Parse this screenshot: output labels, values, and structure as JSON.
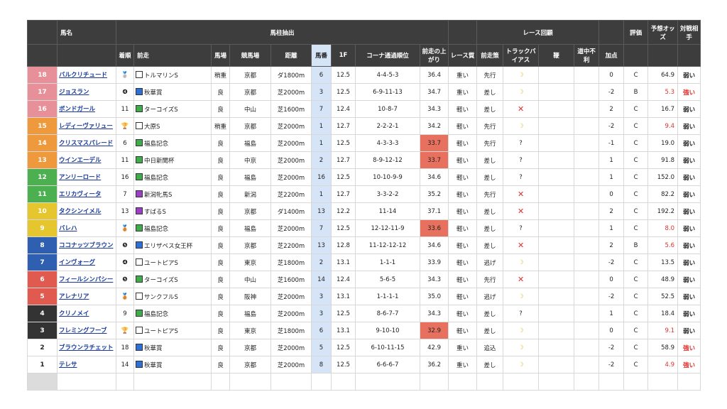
{
  "header": {
    "row1": [
      "馬名",
      "馬柱抽出",
      "レース回顧",
      "評価",
      "予想オッズ",
      "対戦相手"
    ],
    "row2": [
      "着順",
      "前走",
      "馬場",
      "競馬場",
      "距離",
      "馬番",
      "1F",
      "コーナ通過順位",
      "前走の上がり",
      "レース質",
      "前走策",
      "トラックバイアス",
      "鞭",
      "道中不利",
      "加点"
    ]
  },
  "rows": [
    {
      "frame": "18",
      "frame_color": "#e8909a",
      "frame_text": "#ffffff",
      "name": "バルクリチュード",
      "finish": "🥈",
      "prev_race": "トルマリンS",
      "class_color": "#ffffff",
      "going": "稍重",
      "course": "京都",
      "distance": "ダ1800m",
      "gate": "6",
      "f1": "12.5",
      "corners": "4-4-5-3",
      "last3f": "36.4",
      "last3f_highlight": false,
      "pace": "重い",
      "tactic": "先行",
      "bias": "☽",
      "points": "0",
      "grade": "C",
      "odds": "64.9",
      "odds_highlight": false,
      "rival": "弱い",
      "rival_highlight": false
    },
    {
      "frame": "17",
      "frame_color": "#e8909a",
      "frame_text": "#ffffff",
      "name": "ジョスラン",
      "finish": "❹",
      "prev_race": "秋華賞",
      "class_color": "#2f6fd8",
      "going": "良",
      "course": "京都",
      "distance": "芝2000m",
      "gate": "3",
      "f1": "12.5",
      "corners": "6-9-11-13",
      "last3f": "34.7",
      "last3f_highlight": false,
      "pace": "重い",
      "tactic": "差し",
      "bias": "☽",
      "points": "-2",
      "grade": "B",
      "odds": "5.3",
      "odds_highlight": true,
      "rival": "強い",
      "rival_highlight": true
    },
    {
      "frame": "16",
      "frame_color": "#e8909a",
      "frame_text": "#ffffff",
      "name": "ボンドガール",
      "finish": "11",
      "prev_race": "ターコイズS",
      "class_color": "#3fae4a",
      "going": "良",
      "course": "中山",
      "distance": "芝1600m",
      "gate": "7",
      "f1": "12.4",
      "corners": "10-8-7",
      "last3f": "34.3",
      "last3f_highlight": false,
      "pace": "軽い",
      "tactic": "差し",
      "bias": "✕",
      "points": "2",
      "grade": "C",
      "odds": "16.7",
      "odds_highlight": false,
      "rival": "弱い",
      "rival_highlight": false
    },
    {
      "frame": "15",
      "frame_color": "#ee9a3c",
      "frame_text": "#ffffff",
      "name": "レディーヴァリュー",
      "finish": "🏆",
      "prev_race": "大原S",
      "class_color": "#ffffff",
      "going": "稍重",
      "course": "京都",
      "distance": "芝2000m",
      "gate": "1",
      "f1": "12.7",
      "corners": "2-2-2-1",
      "last3f": "34.2",
      "last3f_highlight": false,
      "pace": "軽い",
      "tactic": "先行",
      "bias": "☽",
      "points": "-2",
      "grade": "C",
      "odds": "9.4",
      "odds_highlight": true,
      "rival": "弱い",
      "rival_highlight": false
    },
    {
      "frame": "14",
      "frame_color": "#ee9a3c",
      "frame_text": "#ffffff",
      "name": "クリスマスパレード",
      "finish": "6",
      "prev_race": "福島記念",
      "class_color": "#3fae4a",
      "going": "良",
      "course": "福島",
      "distance": "芝2000m",
      "gate": "1",
      "f1": "12.5",
      "corners": "4-3-3-3",
      "last3f": "33.7",
      "last3f_highlight": true,
      "pace": "軽い",
      "tactic": "先行",
      "bias": "?",
      "points": "-1",
      "grade": "C",
      "odds": "19.0",
      "odds_highlight": false,
      "rival": "弱い",
      "rival_highlight": false
    },
    {
      "frame": "13",
      "frame_color": "#ee9a3c",
      "frame_text": "#ffffff",
      "name": "ウインエーデル",
      "finish": "11",
      "prev_race": "中日新聞杯",
      "class_color": "#3fae4a",
      "going": "良",
      "course": "中京",
      "distance": "芝2000m",
      "gate": "2",
      "f1": "12.7",
      "corners": "8-9-12-12",
      "last3f": "33.7",
      "last3f_highlight": true,
      "pace": "軽い",
      "tactic": "差し",
      "bias": "?",
      "points": "1",
      "grade": "C",
      "odds": "91.8",
      "odds_highlight": false,
      "rival": "弱い",
      "rival_highlight": false
    },
    {
      "frame": "12",
      "frame_color": "#4caf50",
      "frame_text": "#ffffff",
      "name": "アンリーロード",
      "finish": "16",
      "prev_race": "福島記念",
      "class_color": "#3fae4a",
      "going": "良",
      "course": "福島",
      "distance": "芝2000m",
      "gate": "16",
      "f1": "12.5",
      "corners": "10-10-9-9",
      "last3f": "34.6",
      "last3f_highlight": false,
      "pace": "軽い",
      "tactic": "差し",
      "bias": "?",
      "points": "1",
      "grade": "C",
      "odds": "152.0",
      "odds_highlight": false,
      "rival": "弱い",
      "rival_highlight": false
    },
    {
      "frame": "11",
      "frame_color": "#4caf50",
      "frame_text": "#ffffff",
      "name": "エリカヴィータ",
      "finish": "7",
      "prev_race": "新潟牝馬S",
      "class_color": "#9c3fc8",
      "going": "良",
      "course": "新潟",
      "distance": "芝2200m",
      "gate": "1",
      "f1": "12.7",
      "corners": "3-3-2-2",
      "last3f": "35.2",
      "last3f_highlight": false,
      "pace": "軽い",
      "tactic": "先行",
      "bias": "✕",
      "points": "0",
      "grade": "C",
      "odds": "82.2",
      "odds_highlight": false,
      "rival": "弱い",
      "rival_highlight": false
    },
    {
      "frame": "10",
      "frame_color": "#e6c62e",
      "frame_text": "#ffffff",
      "name": "タクシンイメル",
      "finish": "13",
      "prev_race": "すばるS",
      "class_color": "#9c3fc8",
      "going": "良",
      "course": "京都",
      "distance": "ダ1400m",
      "gate": "13",
      "f1": "12.2",
      "corners": "11-14",
      "last3f": "37.1",
      "last3f_highlight": false,
      "pace": "軽い",
      "tactic": "差し",
      "bias": "✕",
      "points": "2",
      "grade": "C",
      "odds": "192.2",
      "odds_highlight": false,
      "rival": "弱い",
      "rival_highlight": false
    },
    {
      "frame": "9",
      "frame_color": "#e6c62e",
      "frame_text": "#ffffff",
      "name": "バレハ",
      "finish": "🥉",
      "prev_race": "福島記念",
      "class_color": "#3fae4a",
      "going": "良",
      "course": "福島",
      "distance": "芝2000m",
      "gate": "7",
      "f1": "12.5",
      "corners": "12-12-11-9",
      "last3f": "33.6",
      "last3f_highlight": true,
      "pace": "軽い",
      "tactic": "差し",
      "bias": "?",
      "points": "1",
      "grade": "C",
      "odds": "8.0",
      "odds_highlight": true,
      "rival": "弱い",
      "rival_highlight": false
    },
    {
      "frame": "8",
      "frame_color": "#2f5fb0",
      "frame_text": "#ffffff",
      "name": "ココナッツブラウン",
      "finish": "❺",
      "prev_race": "エリザベス女王杯",
      "class_color": "#2f6fd8",
      "going": "良",
      "course": "京都",
      "distance": "芝2200m",
      "gate": "13",
      "f1": "12.8",
      "corners": "11-12-12-12",
      "last3f": "34.6",
      "last3f_highlight": false,
      "pace": "軽い",
      "tactic": "差し",
      "bias": "✕",
      "points": "2",
      "grade": "B",
      "odds": "5.6",
      "odds_highlight": true,
      "rival": "弱い",
      "rival_highlight": false
    },
    {
      "frame": "7",
      "frame_color": "#2f5fb0",
      "frame_text": "#ffffff",
      "name": "インヴォーグ",
      "finish": "❹",
      "prev_race": "ユートピアS",
      "class_color": "#ffffff",
      "going": "良",
      "course": "東京",
      "distance": "芝1800m",
      "gate": "2",
      "f1": "13.1",
      "corners": "1-1-1",
      "last3f": "33.9",
      "last3f_highlight": false,
      "pace": "軽い",
      "tactic": "逃げ",
      "bias": "☽",
      "points": "-2",
      "grade": "C",
      "odds": "13.5",
      "odds_highlight": false,
      "rival": "弱い",
      "rival_highlight": false
    },
    {
      "frame": "6",
      "frame_color": "#e05a50",
      "frame_text": "#ffffff",
      "name": "フィールシンパシー",
      "finish": "❺",
      "prev_race": "ターコイズS",
      "class_color": "#3fae4a",
      "going": "良",
      "course": "中山",
      "distance": "芝1600m",
      "gate": "14",
      "f1": "12.4",
      "corners": "5-6-5",
      "last3f": "34.3",
      "last3f_highlight": false,
      "pace": "軽い",
      "tactic": "先行",
      "bias": "✕",
      "points": "0",
      "grade": "C",
      "odds": "48.9",
      "odds_highlight": false,
      "rival": "弱い",
      "rival_highlight": false
    },
    {
      "frame": "5",
      "frame_color": "#e05a50",
      "frame_text": "#ffffff",
      "name": "アレナリア",
      "finish": "🥉",
      "prev_race": "サンクフルS",
      "class_color": "#ffffff",
      "going": "良",
      "course": "阪神",
      "distance": "芝2000m",
      "gate": "3",
      "f1": "13.1",
      "corners": "1-1-1-1",
      "last3f": "35.0",
      "last3f_highlight": false,
      "pace": "軽い",
      "tactic": "逃げ",
      "bias": "☽",
      "points": "-2",
      "grade": "C",
      "odds": "52.5",
      "odds_highlight": false,
      "rival": "弱い",
      "rival_highlight": false
    },
    {
      "frame": "4",
      "frame_color": "#333333",
      "frame_text": "#ffffff",
      "name": "クリノメイ",
      "finish": "9",
      "prev_race": "福島記念",
      "class_color": "#3fae4a",
      "going": "良",
      "course": "福島",
      "distance": "芝2000m",
      "gate": "3",
      "f1": "12.5",
      "corners": "8-6-7-7",
      "last3f": "34.3",
      "last3f_highlight": false,
      "pace": "軽い",
      "tactic": "差し",
      "bias": "?",
      "points": "1",
      "grade": "C",
      "odds": "18.4",
      "odds_highlight": false,
      "rival": "弱い",
      "rival_highlight": false
    },
    {
      "frame": "3",
      "frame_color": "#333333",
      "frame_text": "#ffffff",
      "name": "フレミングフーブ",
      "finish": "🏆",
      "prev_race": "ユートピアS",
      "class_color": "#ffffff",
      "going": "良",
      "course": "東京",
      "distance": "芝1800m",
      "gate": "6",
      "f1": "13.1",
      "corners": "9-10-10",
      "last3f": "32.9",
      "last3f_highlight": true,
      "pace": "軽い",
      "tactic": "差し",
      "bias": "☽",
      "points": "0",
      "grade": "C",
      "odds": "9.1",
      "odds_highlight": true,
      "rival": "弱い",
      "rival_highlight": false
    },
    {
      "frame": "2",
      "frame_color": "#ffffff",
      "frame_text": "#222222",
      "name": "ブラウンラチェット",
      "finish": "18",
      "prev_race": "秋華賞",
      "class_color": "#2f6fd8",
      "going": "良",
      "course": "京都",
      "distance": "芝2000m",
      "gate": "5",
      "f1": "12.5",
      "corners": "6-10-11-15",
      "last3f": "42.9",
      "last3f_highlight": false,
      "pace": "重い",
      "tactic": "追込",
      "bias": "☽",
      "points": "-2",
      "grade": "C",
      "odds": "58.9",
      "odds_highlight": false,
      "rival": "強い",
      "rival_highlight": true
    },
    {
      "frame": "1",
      "frame_color": "#ffffff",
      "frame_text": "#222222",
      "name": "テレサ",
      "finish": "14",
      "prev_race": "秋華賞",
      "class_color": "#2f6fd8",
      "going": "良",
      "course": "京都",
      "distance": "芝2000m",
      "gate": "8",
      "f1": "12.5",
      "corners": "6-6-6-7",
      "last3f": "36.2",
      "last3f_highlight": false,
      "pace": "重い",
      "tactic": "差し",
      "bias": "☽",
      "points": "-2",
      "grade": "C",
      "odds": "4.9",
      "odds_highlight": true,
      "rival": "強い",
      "rival_highlight": true
    }
  ]
}
